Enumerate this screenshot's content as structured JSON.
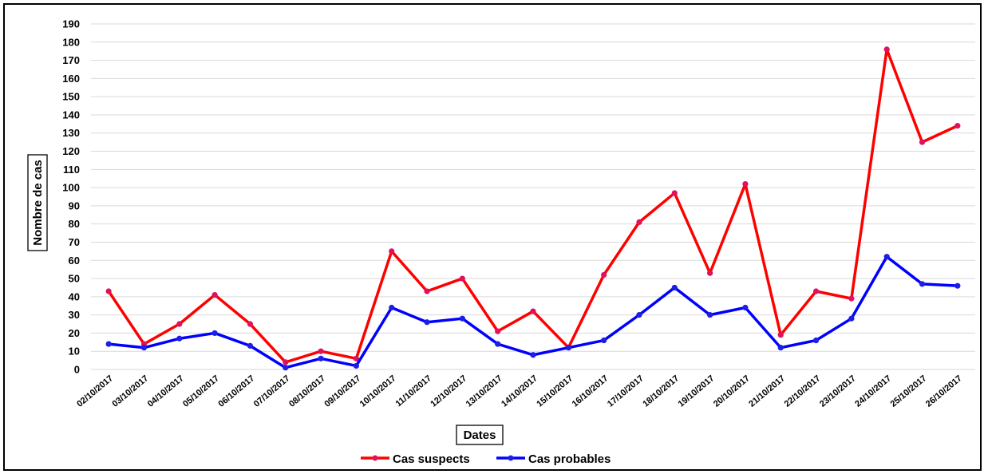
{
  "chart_data": {
    "type": "line",
    "title": "",
    "xlabel": "Dates",
    "ylabel": "Nombre de cas",
    "ylim": [
      0,
      190
    ],
    "ytick_step": 10,
    "grid": "horizontal",
    "legend_position": "bottom-center",
    "categories": [
      "02/10/2017",
      "03/10/2017",
      "04/10/2017",
      "05/10/2017",
      "06/10/2017",
      "07/10/2017",
      "08/10/2017",
      "09/10/2017",
      "10/10/2017",
      "11/10/2017",
      "12/10/2017",
      "13/10/2017",
      "14/10/2017",
      "15/10/2017",
      "16/10/2017",
      "17/10/2017",
      "18/10/2017",
      "19/10/2017",
      "20/10/2017",
      "21/10/2017",
      "22/10/2017",
      "23/10/2017",
      "24/10/2017",
      "25/10/2017",
      "26/10/2017"
    ],
    "series": [
      {
        "name": "Cas suspects",
        "color": "#ff0000",
        "marker_color": "#e0115f",
        "values": [
          43,
          14,
          25,
          41,
          25,
          4,
          10,
          6,
          65,
          43,
          50,
          21,
          32,
          12,
          52,
          81,
          97,
          53,
          102,
          19,
          43,
          39,
          176,
          125,
          134
        ]
      },
      {
        "name": "Cas probables",
        "color": "#0000ff",
        "marker_color": "#1e1ee6",
        "values": [
          14,
          12,
          17,
          20,
          13,
          1,
          6,
          2,
          34,
          26,
          28,
          14,
          8,
          12,
          16,
          30,
          45,
          30,
          34,
          12,
          16,
          28,
          62,
          47,
          46
        ]
      }
    ]
  }
}
